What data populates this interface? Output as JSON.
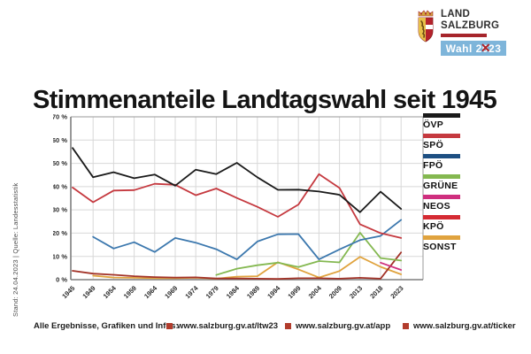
{
  "header": {
    "title": "Stimmenanteile Landtagswahl seit 1945"
  },
  "logo": {
    "line1": "LAND",
    "line2": "SALZBURG",
    "bar_color": "#a6252b",
    "badge_bg": "#7eb5da",
    "badge_prefix": "Wahl 2",
    "badge_zero": "0",
    "badge_cross": "✕",
    "badge_suffix": "23"
  },
  "side_caption": "Stand: 24.04.2023 | Quelle: Landesstatistik",
  "footer": {
    "label": "Alle Ergebnisse, Grafiken und Infos:",
    "bullet_color": "#b23c2c",
    "links": [
      "www.salzburg.gv.at/ltw23",
      "www.salzburg.gv.at/app",
      "www.salzburg.gv.at/ticker"
    ]
  },
  "chart_data": {
    "type": "line",
    "title": "Stimmenanteile Landtagswahl seit 1945",
    "xlabel": "",
    "ylabel": "",
    "ylim": [
      0,
      70
    ],
    "y_ticks": [
      0,
      10,
      20,
      30,
      40,
      50,
      60,
      70
    ],
    "y_tick_suffix": " %",
    "grid": true,
    "legend_position": "right",
    "x": [
      1945,
      1949,
      1954,
      1959,
      1964,
      1969,
      1974,
      1979,
      1984,
      1989,
      1994,
      1999,
      2004,
      2009,
      2013,
      2018,
      2023
    ],
    "series": [
      {
        "name": "ÖVP",
        "color": "#1a1a1a",
        "legend_color": "#1a1a1a",
        "values": [
          56.6,
          44.0,
          46.2,
          43.6,
          45.2,
          40.4,
          47.3,
          45.4,
          50.2,
          44.0,
          38.6,
          38.7,
          37.9,
          36.5,
          29.0,
          37.8,
          30.4
        ]
      },
      {
        "name": "SPÖ",
        "color": "#c5393f",
        "legend_color": "#c5393f",
        "values": [
          39.6,
          33.3,
          38.3,
          38.5,
          41.2,
          40.8,
          36.3,
          39.2,
          35.1,
          31.3,
          27.0,
          32.3,
          45.4,
          39.4,
          23.8,
          20.0,
          17.9
        ]
      },
      {
        "name": "FPÖ",
        "color": "#3c78ae",
        "legend_color": "#1d4f82",
        "values": [
          null,
          18.4,
          13.4,
          16.1,
          11.9,
          17.9,
          15.9,
          13.1,
          8.7,
          16.4,
          19.5,
          19.6,
          8.7,
          13.0,
          17.0,
          18.8,
          25.7
        ]
      },
      {
        "name": "GRÜNE",
        "color": "#84b850",
        "legend_color": "#84b850",
        "values": [
          null,
          null,
          null,
          null,
          null,
          null,
          null,
          2.0,
          4.7,
          6.2,
          7.3,
          5.4,
          8.0,
          7.4,
          20.2,
          9.3,
          8.2
        ]
      },
      {
        "name": "NEOS",
        "color": "#cf2f7e",
        "legend_color": "#cf2f7e",
        "values": [
          null,
          null,
          null,
          null,
          null,
          null,
          null,
          null,
          null,
          null,
          null,
          null,
          null,
          null,
          null,
          7.3,
          4.2
        ]
      },
      {
        "name": "KPÖ",
        "color": "#a23227",
        "legend_color": "#d52b33",
        "values": [
          3.8,
          2.6,
          2.1,
          1.5,
          1.1,
          0.9,
          1.0,
          0.5,
          0.5,
          0.4,
          0.3,
          0.6,
          0.6,
          0.4,
          0.8,
          0.4,
          11.7
        ]
      },
      {
        "name": "SONST",
        "color": "#e0a33e",
        "legend_color": "#e0a33e",
        "values": [
          null,
          1.7,
          0.9,
          0.8,
          0.6,
          0.6,
          0.8,
          0.4,
          1.3,
          1.5,
          7.5,
          4.4,
          0.9,
          3.7,
          9.8,
          5.5,
          2.3
        ]
      }
    ]
  }
}
